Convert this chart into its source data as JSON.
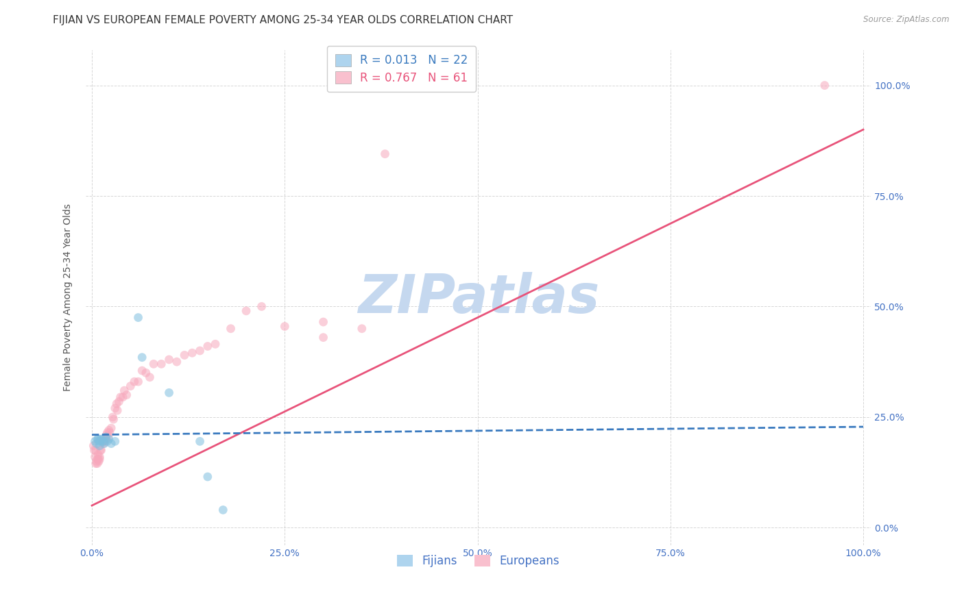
{
  "title": "FIJIAN VS EUROPEAN FEMALE POVERTY AMONG 25-34 YEAR OLDS CORRELATION CHART",
  "source": "Source: ZipAtlas.com",
  "ylabel": "Female Poverty Among 25-34 Year Olds",
  "watermark": "ZIPatlas",
  "fijian_R": "0.013",
  "fijian_N": "22",
  "european_R": "0.767",
  "european_N": "61",
  "fijian_color": "#7fbfdf",
  "european_color": "#f7a8bc",
  "fijian_line_color": "#3a7abf",
  "european_line_color": "#e8537a",
  "axis_color": "#4472c4",
  "legend_fijian_fill": "#aed4ee",
  "legend_european_fill": "#f9c0ce",
  "fijian_x": [
    0.004,
    0.006,
    0.007,
    0.008,
    0.009,
    0.01,
    0.011,
    0.012,
    0.013,
    0.015,
    0.016,
    0.018,
    0.02,
    0.022,
    0.025,
    0.03,
    0.06,
    0.065,
    0.1,
    0.14,
    0.15,
    0.17
  ],
  "fijian_y": [
    0.195,
    0.19,
    0.2,
    0.2,
    0.195,
    0.185,
    0.2,
    0.195,
    0.2,
    0.195,
    0.19,
    0.205,
    0.195,
    0.2,
    0.19,
    0.195,
    0.475,
    0.385,
    0.305,
    0.195,
    0.115,
    0.04
  ],
  "european_x": [
    0.002,
    0.003,
    0.004,
    0.005,
    0.005,
    0.006,
    0.007,
    0.007,
    0.008,
    0.008,
    0.009,
    0.01,
    0.01,
    0.011,
    0.012,
    0.013,
    0.014,
    0.015,
    0.016,
    0.017,
    0.018,
    0.019,
    0.02,
    0.021,
    0.022,
    0.023,
    0.025,
    0.027,
    0.028,
    0.03,
    0.032,
    0.033,
    0.035,
    0.037,
    0.04,
    0.042,
    0.045,
    0.05,
    0.055,
    0.06,
    0.065,
    0.07,
    0.075,
    0.08,
    0.09,
    0.1,
    0.11,
    0.12,
    0.13,
    0.14,
    0.15,
    0.16,
    0.18,
    0.2,
    0.22,
    0.25,
    0.3,
    0.3,
    0.35,
    0.38,
    0.95
  ],
  "european_y": [
    0.185,
    0.175,
    0.16,
    0.145,
    0.175,
    0.15,
    0.155,
    0.145,
    0.155,
    0.165,
    0.15,
    0.155,
    0.16,
    0.175,
    0.175,
    0.195,
    0.195,
    0.19,
    0.2,
    0.195,
    0.2,
    0.21,
    0.215,
    0.205,
    0.22,
    0.215,
    0.225,
    0.25,
    0.245,
    0.27,
    0.28,
    0.265,
    0.285,
    0.295,
    0.295,
    0.31,
    0.3,
    0.32,
    0.33,
    0.33,
    0.355,
    0.35,
    0.34,
    0.37,
    0.37,
    0.38,
    0.375,
    0.39,
    0.395,
    0.4,
    0.41,
    0.415,
    0.45,
    0.49,
    0.5,
    0.455,
    0.43,
    0.465,
    0.45,
    0.845,
    1.0
  ],
  "fijian_trend_x": [
    0.0,
    1.0
  ],
  "fijian_trend_y": [
    0.21,
    0.228
  ],
  "european_trend_x": [
    0.0,
    1.0
  ],
  "european_trend_y": [
    0.05,
    0.9
  ],
  "xtick_positions": [
    0,
    0.25,
    0.5,
    0.75,
    1.0
  ],
  "xtick_labels": [
    "0.0%",
    "25.0%",
    "50.0%",
    "75.0%",
    "100.0%"
  ],
  "ytick_positions": [
    0,
    0.25,
    0.5,
    0.75,
    1.0
  ],
  "ytick_labels_right": [
    "0.0%",
    "25.0%",
    "50.0%",
    "75.0%",
    "100.0%"
  ],
  "background_color": "#ffffff",
  "grid_color": "#cccccc",
  "title_fontsize": 11,
  "label_fontsize": 10,
  "tick_fontsize": 10,
  "legend_fontsize": 12,
  "watermark_color": "#c5d8ef",
  "marker_size": 85,
  "marker_alpha": 0.55
}
